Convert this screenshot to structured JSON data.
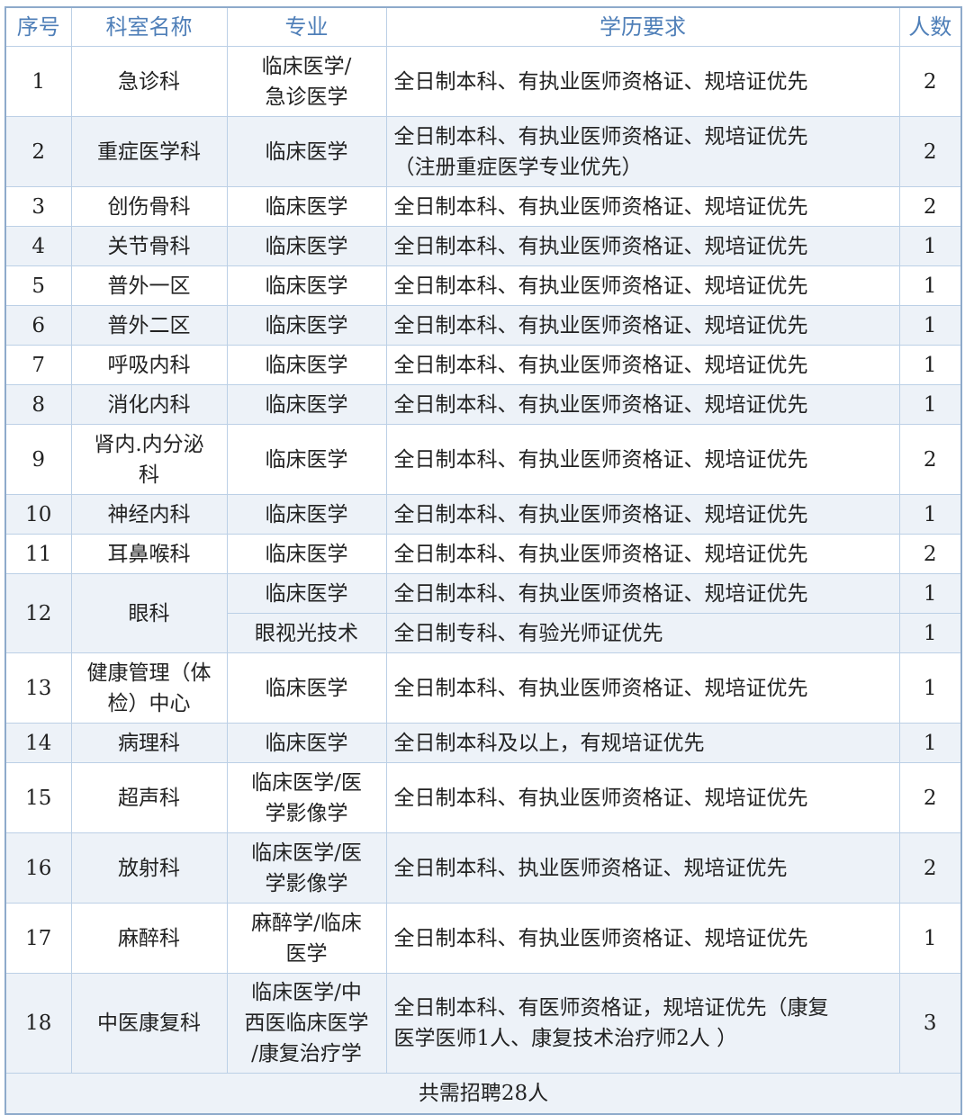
{
  "colors": {
    "header_text": "#4f7fb8",
    "border": "#bcd0e6",
    "shade": "#edf2f8"
  },
  "headers": [
    "序号",
    "科室名称",
    "专业",
    "学历要求",
    "人数"
  ],
  "rows": [
    {
      "no": "1",
      "dept": "急诊科",
      "major": "临床医学/\n急诊医学",
      "req": "全日制本科、有执业医师资格证、规培证优先",
      "count": "2"
    },
    {
      "no": "2",
      "dept": "重症医学科",
      "major": "临床医学",
      "req": "全日制本科、有执业医师资格证、规培证优先\n（注册重症医学专业优先）",
      "count": "2"
    },
    {
      "no": "3",
      "dept": "创伤骨科",
      "major": "临床医学",
      "req": "全日制本科、有执业医师资格证、规培证优先",
      "count": "2"
    },
    {
      "no": "4",
      "dept": "关节骨科",
      "major": "临床医学",
      "req": "全日制本科、有执业医师资格证、规培证优先",
      "count": "1"
    },
    {
      "no": "5",
      "dept": "普外一区",
      "major": "临床医学",
      "req": "全日制本科、有执业医师资格证、规培证优先",
      "count": "1"
    },
    {
      "no": "6",
      "dept": "普外二区",
      "major": "临床医学",
      "req": "全日制本科、有执业医师资格证、规培证优先",
      "count": "1"
    },
    {
      "no": "7",
      "dept": "呼吸内科",
      "major": "临床医学",
      "req": "全日制本科、有执业医师资格证、规培证优先",
      "count": "1"
    },
    {
      "no": "8",
      "dept": "消化内科",
      "major": "临床医学",
      "req": "全日制本科、有执业医师资格证、规培证优先",
      "count": "1"
    },
    {
      "no": "9",
      "dept": "肾内.内分泌\n科",
      "major": "临床医学",
      "req": "全日制本科、有执业医师资格证、规培证优先",
      "count": "2"
    },
    {
      "no": "10",
      "dept": "神经内科",
      "major": "临床医学",
      "req": "全日制本科、有执业医师资格证、规培证优先",
      "count": "1"
    },
    {
      "no": "11",
      "dept": "耳鼻喉科",
      "major": "临床医学",
      "req": "全日制本科、有执业医师资格证、规培证优先",
      "count": "2"
    },
    {
      "no": "12",
      "dept": "眼科",
      "sub": [
        {
          "major": "临床医学",
          "req": "全日制本科、有执业医师资格证、规培证优先",
          "count": "1"
        },
        {
          "major": "眼视光技术",
          "req": "全日制专科、有验光师证优先",
          "count": "1"
        }
      ]
    },
    {
      "no": "13",
      "dept": "健康管理（体\n检）中心",
      "major": "临床医学",
      "req": "全日制本科、有执业医师资格证、规培证优先",
      "count": "1"
    },
    {
      "no": "14",
      "dept": "病理科",
      "major": "临床医学",
      "req": "全日制本科及以上，有规培证优先",
      "count": "1"
    },
    {
      "no": "15",
      "dept": "超声科",
      "major": "临床医学/医\n学影像学",
      "req": "全日制本科、有执业医师资格证、规培证优先",
      "count": "2"
    },
    {
      "no": "16",
      "dept": "放射科",
      "major": "临床医学/医\n学影像学",
      "req": "全日制本科、执业医师资格证、规培证优先",
      "count": "2"
    },
    {
      "no": "17",
      "dept": "麻醉科",
      "major": "麻醉学/临床\n医学",
      "req": "全日制本科、有执业医师资格证、规培证优先",
      "count": "1"
    },
    {
      "no": "18",
      "dept": "中医康复科",
      "major": "临床医学/中\n西医临床医学\n/康复治疗学",
      "req": "全日制本科、有医师资格证，规培证优先（康复\n医学医师1人、康复技术治疗师2人 ）",
      "count": "3"
    }
  ],
  "total": "共需招聘28人"
}
